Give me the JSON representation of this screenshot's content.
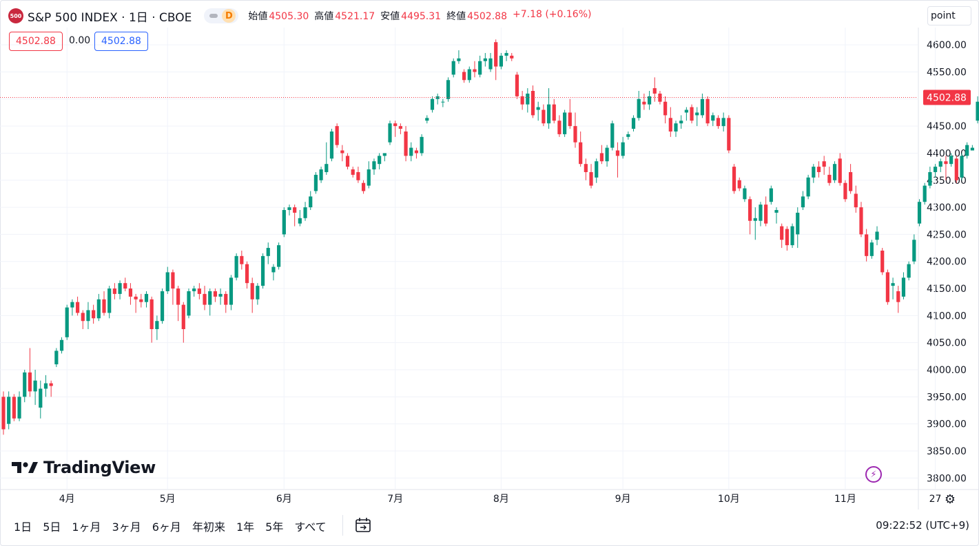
{
  "header": {
    "badge": "500",
    "title": "S&P 500 INDEX · 1日 · CBOE",
    "pill_letter": "D",
    "ohlc": [
      {
        "label": "始値",
        "value": "4505.30"
      },
      {
        "label": "高値",
        "value": "4521.17"
      },
      {
        "label": "安値",
        "value": "4495.31"
      },
      {
        "label": "終値",
        "value": "4502.88"
      }
    ],
    "change": "+7.18 (+0.16%)"
  },
  "values_row": {
    "close": "4502.88",
    "spread": "0.00",
    "close2": "4502.88"
  },
  "unit_button": "point",
  "logo_text": "TradingView",
  "range_buttons": [
    "1日",
    "5日",
    "1ヶ月",
    "3ヶ月",
    "6ヶ月",
    "年初来",
    "1年",
    "5年",
    "すべて"
  ],
  "clock": "09:22:52 (UTC+9)",
  "icons": [
    "calendar-range-icon",
    "gear-icon",
    "lightning-icon",
    "tradingview-logo-icon"
  ],
  "colors": {
    "up": "#089981",
    "down": "#f23645",
    "price_line": "#f23645",
    "grid": "#f0f3fa"
  },
  "chart_data": {
    "type": "candlestick",
    "title": "S&P 500 INDEX · 1日 · CBOE",
    "ylim": [
      3780,
      4632
    ],
    "y_ticks": [
      3800,
      3850,
      3900,
      3950,
      4000,
      4050,
      4100,
      4150,
      4200,
      4250,
      4300,
      4350,
      4400,
      4450,
      4500,
      4550,
      4600
    ],
    "y_tick_labels": [
      "3800.00",
      "3850.00",
      "3900.00",
      "3950.00",
      "4000.00",
      "4050.00",
      "4100.00",
      "4150.00",
      "4200.00",
      "4250.00",
      "4300.00",
      "4350.00",
      "4400.00",
      "4450.00",
      "4500.00",
      "4550.00",
      "4600.00"
    ],
    "x_labels": [
      {
        "label": "4月",
        "index": 12
      },
      {
        "label": "5月",
        "index": 31
      },
      {
        "label": "6月",
        "index": 53
      },
      {
        "label": "7月",
        "index": 74
      },
      {
        "label": "8月",
        "index": 94
      },
      {
        "label": "9月",
        "index": 117
      },
      {
        "label": "10月",
        "index": 137
      },
      {
        "label": "11月",
        "index": 159
      },
      {
        "label": "27",
        "index": 176
      }
    ],
    "last_price": 4502.88,
    "last_price_label": "4502.88",
    "ohlc": [
      [
        3950,
        3960,
        3880,
        3890
      ],
      [
        3900,
        3960,
        3890,
        3950
      ],
      [
        3950,
        3955,
        3905,
        3910
      ],
      [
        3910,
        3960,
        3905,
        3950
      ],
      [
        3950,
        4000,
        3940,
        3995
      ],
      [
        3995,
        4040,
        3950,
        3960
      ],
      [
        3960,
        4000,
        3935,
        3980
      ],
      [
        3930,
        3980,
        3910,
        3965
      ],
      [
        3965,
        3990,
        3950,
        3975
      ],
      [
        3975,
        3980,
        3950,
        3970
      ],
      [
        4010,
        4040,
        4005,
        4035
      ],
      [
        4035,
        4060,
        4030,
        4055
      ],
      [
        4060,
        4120,
        4055,
        4115
      ],
      [
        4115,
        4130,
        4100,
        4125
      ],
      [
        4125,
        4135,
        4100,
        4105
      ],
      [
        4105,
        4110,
        4075,
        4090
      ],
      [
        4090,
        4125,
        4075,
        4110
      ],
      [
        4110,
        4120,
        4085,
        4095
      ],
      [
        4095,
        4140,
        4090,
        4130
      ],
      [
        4130,
        4145,
        4100,
        4105
      ],
      [
        4105,
        4155,
        4095,
        4150
      ],
      [
        4150,
        4160,
        4130,
        4140
      ],
      [
        4140,
        4165,
        4130,
        4160
      ],
      [
        4160,
        4170,
        4145,
        4150
      ],
      [
        4150,
        4160,
        4120,
        4135
      ],
      [
        4135,
        4140,
        4105,
        4130
      ],
      [
        4130,
        4140,
        4115,
        4125
      ],
      [
        4125,
        4145,
        4115,
        4140
      ],
      [
        4130,
        4135,
        4050,
        4075
      ],
      [
        4075,
        4100,
        4055,
        4090
      ],
      [
        4090,
        4150,
        4085,
        4145
      ],
      [
        4145,
        4190,
        4140,
        4180
      ],
      [
        4180,
        4185,
        4120,
        4150
      ],
      [
        4150,
        4155,
        4090,
        4120
      ],
      [
        4120,
        4125,
        4050,
        4075
      ],
      [
        4100,
        4150,
        4095,
        4145
      ],
      [
        4145,
        4155,
        4135,
        4150
      ],
      [
        4150,
        4160,
        4130,
        4140
      ],
      [
        4140,
        4155,
        4110,
        4120
      ],
      [
        4120,
        4150,
        4100,
        4145
      ],
      [
        4145,
        4150,
        4125,
        4135
      ],
      [
        4135,
        4150,
        4120,
        4140
      ],
      [
        4140,
        4145,
        4105,
        4120
      ],
      [
        4120,
        4175,
        4110,
        4170
      ],
      [
        4170,
        4215,
        4165,
        4210
      ],
      [
        4210,
        4220,
        4185,
        4195
      ],
      [
        4195,
        4200,
        4150,
        4160
      ],
      [
        4160,
        4170,
        4105,
        4130
      ],
      [
        4130,
        4160,
        4120,
        4155
      ],
      [
        4155,
        4215,
        4150,
        4210
      ],
      [
        4210,
        4235,
        4195,
        4225
      ],
      [
        4180,
        4195,
        4165,
        4190
      ],
      [
        4190,
        4235,
        4185,
        4230
      ],
      [
        4250,
        4300,
        4245,
        4295
      ],
      [
        4295,
        4305,
        4285,
        4300
      ],
      [
        4300,
        4305,
        4265,
        4290
      ],
      [
        4270,
        4295,
        4265,
        4280
      ],
      [
        4280,
        4310,
        4275,
        4300
      ],
      [
        4300,
        4330,
        4295,
        4320
      ],
      [
        4330,
        4365,
        4325,
        4360
      ],
      [
        4350,
        4375,
        4345,
        4370
      ],
      [
        4365,
        4420,
        4360,
        4380
      ],
      [
        4390,
        4445,
        4385,
        4440
      ],
      [
        4450,
        4455,
        4410,
        4415
      ],
      [
        4405,
        4415,
        4385,
        4400
      ],
      [
        4395,
        4400,
        4370,
        4375
      ],
      [
        4370,
        4375,
        4355,
        4360
      ],
      [
        4365,
        4375,
        4345,
        4350
      ],
      [
        4345,
        4350,
        4325,
        4330
      ],
      [
        4340,
        4385,
        4335,
        4370
      ],
      [
        4370,
        4390,
        4360,
        4385
      ],
      [
        4380,
        4400,
        4370,
        4395
      ],
      [
        4395,
        4400,
        4385,
        4400
      ],
      [
        4420,
        4460,
        4415,
        4455
      ],
      [
        4455,
        4460,
        4430,
        4450
      ],
      [
        4450,
        4455,
        4435,
        4445
      ],
      [
        4440,
        4450,
        4385,
        4395
      ],
      [
        4395,
        4420,
        4385,
        4410
      ],
      [
        4405,
        4410,
        4390,
        4400
      ],
      [
        4400,
        4435,
        4395,
        4430
      ],
      [
        4460,
        4470,
        4455,
        4465
      ],
      [
        4480,
        4505,
        4475,
        4500
      ],
      [
        4500,
        4510,
        4490,
        4505
      ],
      [
        4495,
        4500,
        4485,
        4495
      ],
      [
        4500,
        4540,
        4495,
        4535
      ],
      [
        4545,
        4575,
        4540,
        4570
      ],
      [
        4570,
        4590,
        4565,
        4575
      ],
      [
        4550,
        4555,
        4530,
        4535
      ],
      [
        4535,
        4560,
        4530,
        4555
      ],
      [
        4555,
        4570,
        4540,
        4550
      ],
      [
        4545,
        4580,
        4540,
        4570
      ],
      [
        4570,
        4585,
        4560,
        4575
      ],
      [
        4555,
        4585,
        4550,
        4575
      ],
      [
        4605,
        4610,
        4535,
        4560
      ],
      [
        4560,
        4585,
        4555,
        4580
      ],
      [
        4580,
        4590,
        4570,
        4585
      ],
      [
        4580,
        4585,
        4570,
        4575
      ],
      [
        4545,
        4550,
        4500,
        4505
      ],
      [
        4505,
        4515,
        4480,
        4490
      ],
      [
        4490,
        4520,
        4475,
        4510
      ],
      [
        4515,
        4525,
        4465,
        4470
      ],
      [
        4480,
        4495,
        4460,
        4485
      ],
      [
        4480,
        4490,
        4450,
        4455
      ],
      [
        4455,
        4520,
        4445,
        4490
      ],
      [
        4490,
        4500,
        4455,
        4460
      ],
      [
        4460,
        4470,
        4430,
        4435
      ],
      [
        4435,
        4480,
        4430,
        4475
      ],
      [
        4475,
        4500,
        4445,
        4450
      ],
      [
        4450,
        4475,
        4410,
        4420
      ],
      [
        4420,
        4440,
        4375,
        4380
      ],
      [
        4380,
        4390,
        4350,
        4365
      ],
      [
        4365,
        4380,
        4335,
        4340
      ],
      [
        4355,
        4390,
        4345,
        4385
      ],
      [
        4400,
        4415,
        4380,
        4385
      ],
      [
        4385,
        4415,
        4375,
        4410
      ],
      [
        4410,
        4460,
        4405,
        4455
      ],
      [
        4405,
        4420,
        4355,
        4395
      ],
      [
        4395,
        4430,
        4390,
        4420
      ],
      [
        4430,
        4440,
        4425,
        4435
      ],
      [
        4445,
        4470,
        4440,
        4465
      ],
      [
        4465,
        4515,
        4460,
        4500
      ],
      [
        4495,
        4510,
        4480,
        4490
      ],
      [
        4490,
        4515,
        4480,
        4505
      ],
      [
        4520,
        4540,
        4495,
        4510
      ],
      [
        4510,
        4515,
        4490,
        4495
      ],
      [
        4495,
        4505,
        4455,
        4470
      ],
      [
        4465,
        4485,
        4430,
        4440
      ],
      [
        4440,
        4460,
        4430,
        4455
      ],
      [
        4455,
        4470,
        4445,
        4460
      ],
      [
        4475,
        4485,
        4460,
        4480
      ],
      [
        4485,
        4490,
        4455,
        4460
      ],
      [
        4470,
        4485,
        4450,
        4475
      ],
      [
        4470,
        4510,
        4465,
        4500
      ],
      [
        4500,
        4505,
        4450,
        4455
      ],
      [
        4460,
        4475,
        4450,
        4470
      ],
      [
        4465,
        4470,
        4445,
        4450
      ],
      [
        4450,
        4475,
        4440,
        4465
      ],
      [
        4465,
        4470,
        4400,
        4405
      ],
      [
        4375,
        4380,
        4325,
        4330
      ],
      [
        4350,
        4355,
        4330,
        4335
      ],
      [
        4315,
        4340,
        4310,
        4335
      ],
      [
        4315,
        4320,
        4250,
        4275
      ],
      [
        4275,
        4300,
        4240,
        4280
      ],
      [
        4275,
        4310,
        4265,
        4305
      ],
      [
        4305,
        4320,
        4265,
        4270
      ],
      [
        4310,
        4340,
        4305,
        4335
      ],
      [
        4290,
        4300,
        4270,
        4295
      ],
      [
        4265,
        4270,
        4225,
        4240
      ],
      [
        4260,
        4265,
        4220,
        4230
      ],
      [
        4230,
        4270,
        4225,
        4265
      ],
      [
        4250,
        4300,
        4225,
        4290
      ],
      [
        4300,
        4330,
        4295,
        4320
      ],
      [
        4320,
        4360,
        4315,
        4355
      ],
      [
        4355,
        4380,
        4345,
        4375
      ],
      [
        4375,
        4385,
        4355,
        4365
      ],
      [
        4385,
        4395,
        4360,
        4375
      ],
      [
        4360,
        4375,
        4340,
        4345
      ],
      [
        4350,
        4385,
        4345,
        4380
      ],
      [
        4390,
        4400,
        4340,
        4345
      ],
      [
        4345,
        4350,
        4310,
        4315
      ],
      [
        4365,
        4380,
        4325,
        4330
      ],
      [
        4325,
        4340,
        4290,
        4300
      ],
      [
        4300,
        4310,
        4245,
        4250
      ],
      [
        4250,
        4260,
        4200,
        4210
      ],
      [
        4210,
        4240,
        4205,
        4235
      ],
      [
        4240,
        4265,
        4230,
        4255
      ],
      [
        4220,
        4225,
        4175,
        4180
      ],
      [
        4180,
        4185,
        4120,
        4125
      ],
      [
        4155,
        4170,
        4130,
        4160
      ],
      [
        4145,
        4155,
        4105,
        4125
      ],
      [
        4135,
        4180,
        4130,
        4170
      ],
      [
        4170,
        4200,
        4165,
        4195
      ],
      [
        4200,
        4250,
        4195,
        4240
      ],
      [
        4270,
        4315,
        4265,
        4310
      ],
      [
        4310,
        4345,
        4305,
        4340
      ],
      [
        4340,
        4375,
        4335,
        4365
      ],
      [
        4365,
        4380,
        4355,
        4375
      ],
      [
        4375,
        4390,
        4365,
        4385
      ],
      [
        4385,
        4395,
        4350,
        4380
      ],
      [
        4380,
        4400,
        4375,
        4395
      ],
      [
        4390,
        4395,
        4345,
        4350
      ],
      [
        4355,
        4400,
        4350,
        4395
      ],
      [
        4395,
        4420,
        4390,
        4415
      ],
      [
        4405,
        4415,
        4405,
        4410
      ],
      [
        4460,
        4505,
        4455,
        4495
      ],
      [
        4505,
        4520,
        4495,
        4502
      ]
    ]
  }
}
